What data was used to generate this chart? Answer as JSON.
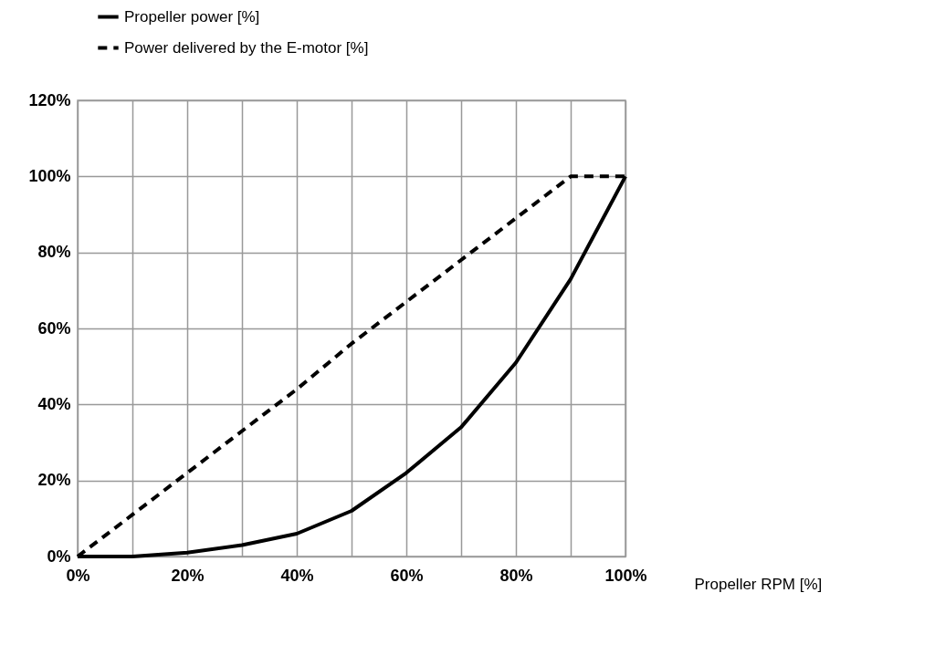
{
  "chart_data": {
    "type": "line",
    "xlabel": "Propeller RPM [%]",
    "x": [
      0,
      10,
      20,
      30,
      40,
      50,
      60,
      70,
      80,
      90,
      100
    ],
    "series": [
      {
        "name": "Propeller power [%]",
        "color": "#000000",
        "line_style": "solid",
        "values": [
          0,
          0,
          1,
          3,
          6,
          12,
          22,
          34,
          51,
          73,
          100
        ]
      },
      {
        "name": "Power delivered by the E-motor [%]",
        "color": "#000000",
        "line_style": "dashed",
        "values": [
          0,
          11,
          22,
          33,
          44,
          56,
          67,
          78,
          89,
          100,
          100
        ]
      }
    ],
    "xlim": [
      0,
      100
    ],
    "xticks": [
      {
        "value": 0,
        "label": "0%"
      },
      {
        "value": 10,
        "label": null
      },
      {
        "value": 20,
        "label": "20%"
      },
      {
        "value": 30,
        "label": null
      },
      {
        "value": 40,
        "label": "40%"
      },
      {
        "value": 50,
        "label": null
      },
      {
        "value": 60,
        "label": "60%"
      },
      {
        "value": 70,
        "label": null
      },
      {
        "value": 80,
        "label": "80%"
      },
      {
        "value": 90,
        "label": null
      },
      {
        "value": 100,
        "label": "100%"
      }
    ],
    "ylim": [
      0,
      120
    ],
    "yticks": [
      {
        "value": 0,
        "label": "0%"
      },
      {
        "value": 20,
        "label": "20%"
      },
      {
        "value": 40,
        "label": "40%"
      },
      {
        "value": 60,
        "label": "60%"
      },
      {
        "value": 80,
        "label": "80%"
      },
      {
        "value": 100,
        "label": "100%"
      },
      {
        "value": 120,
        "label": "120%"
      }
    ],
    "grid": true,
    "legend": "top",
    "marker": "none"
  }
}
